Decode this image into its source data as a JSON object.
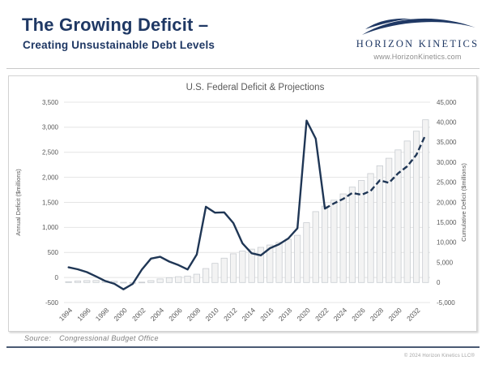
{
  "header": {
    "title": "The Growing Deficit –",
    "subtitle": "Creating Unsustainable Debt Levels"
  },
  "brand": {
    "name": "HORIZON KINETICS",
    "url": "www.HorizonKinetics.com",
    "accent_color": "#1F3864"
  },
  "footer": {
    "source_label": "Source:",
    "source_text": "Congressional Budget Office",
    "copyright": "© 2024  Horizon Kinetics LLC®"
  },
  "chart_data": {
    "type": "bar",
    "combo": "bars (cumulative, right axis) + line (annual, left axis, dashed = projections)",
    "title": "U.S. Federal Deficit & Projections",
    "x": [
      1994,
      1995,
      1996,
      1997,
      1998,
      1999,
      2000,
      2001,
      2002,
      2003,
      2004,
      2005,
      2006,
      2007,
      2008,
      2009,
      2010,
      2011,
      2012,
      2013,
      2014,
      2015,
      2016,
      2017,
      2018,
      2019,
      2020,
      2021,
      2022,
      2023,
      2024,
      2025,
      2026,
      2027,
      2028,
      2029,
      2030,
      2031,
      2032,
      2033
    ],
    "x_tick_labels": [
      "1994",
      "1996",
      "1998",
      "2000",
      "2002",
      "2004",
      "2006",
      "2008",
      "2010",
      "2012",
      "2014",
      "2016",
      "2018",
      "2020",
      "2022",
      "2024",
      "2026",
      "2028",
      "2030",
      "2032"
    ],
    "series": [
      {
        "name": "Annual Deficit",
        "type": "line",
        "axis": "left",
        "color": "#1F3655",
        "projection_start_year": 2023,
        "values": [
          203,
          164,
          107,
          22,
          -69,
          -126,
          -236,
          -128,
          158,
          378,
          413,
          318,
          248,
          161,
          459,
          1413,
          1294,
          1300,
          1087,
          680,
          485,
          442,
          585,
          665,
          779,
          984,
          3132,
          2772,
          1375,
          1480,
          1570,
          1690,
          1650,
          1730,
          1940,
          1890,
          2080,
          2220,
          2450,
          2850
        ]
      },
      {
        "name": "Cumulative Deficit",
        "type": "bar",
        "axis": "right",
        "fill": "#F3F3F3",
        "stroke": "#C8CCD1",
        "values": [
          203,
          367,
          474,
          496,
          427,
          301,
          65,
          -63,
          95,
          473,
          886,
          1204,
          1452,
          1613,
          2072,
          3485,
          4779,
          6079,
          7166,
          7846,
          8331,
          8773,
          9358,
          10023,
          10802,
          11786,
          14918,
          17690,
          19065,
          20545,
          22115,
          23805,
          25455,
          27185,
          29125,
          31015,
          33095,
          35315,
          37765,
          40615
        ]
      }
    ],
    "left_axis": {
      "label": "Annual Deficit ($millions)",
      "min": -500,
      "max": 3500,
      "step": 500,
      "tick_labels_top_to_bottom": [
        "3,500",
        "3,000",
        "2,500",
        "2,000",
        "1,500",
        "1,000",
        "500",
        "0",
        "-500"
      ]
    },
    "right_axis": {
      "label": "Cumulative Deficit ($millions)",
      "min": -5000,
      "max": 45000,
      "step": 5000,
      "tick_labels_top_to_bottom": [
        "45,000",
        "40,000",
        "35,000",
        "30,000",
        "25,000",
        "20,000",
        "15,000",
        "10,000",
        "5,000",
        "0",
        "-5,000"
      ]
    },
    "grid": "horizontal gridlines at left-axis ticks",
    "legend": "none",
    "text_color": "#595959"
  }
}
